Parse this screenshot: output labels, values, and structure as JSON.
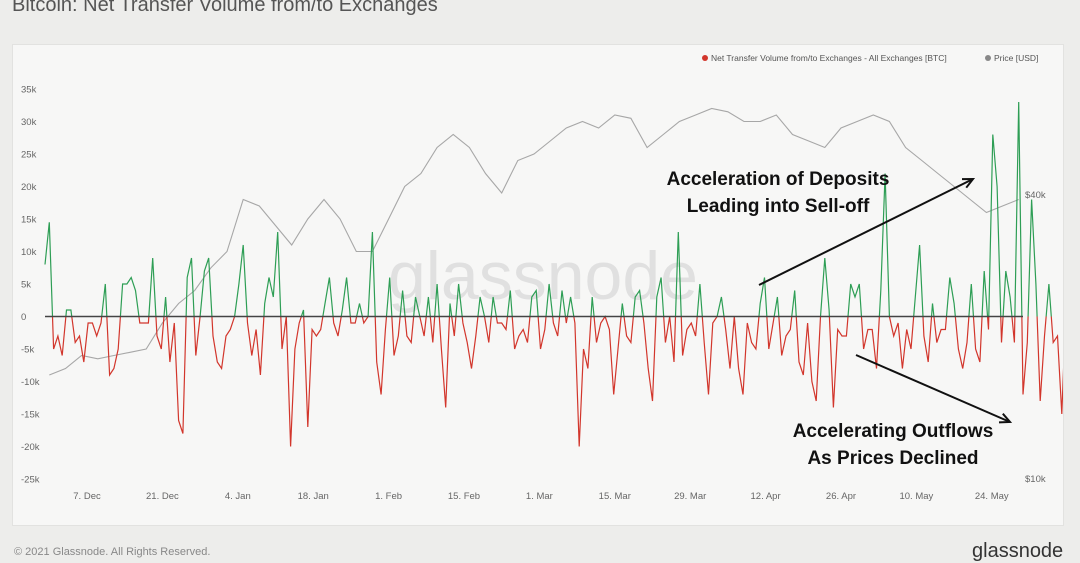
{
  "page": {
    "title": "Bitcoin: Net Transfer Volume from/to Exchanges",
    "copyright": "© 2021 Glassnode. All Rights Reserved.",
    "logo_text": "glassnode"
  },
  "chart_data": {
    "type": "line",
    "watermark": "glassnode",
    "colors": {
      "positive": "#2e9e55",
      "negative": "#d2362c",
      "price": "#a7a7a7",
      "zero_line": "#444444"
    },
    "legend": {
      "placement": "top-right",
      "items": [
        {
          "name": "Net Transfer Volume from/to Exchanges - All Exchanges [BTC]",
          "color": "#d2362c"
        },
        {
          "name": "Price [USD]",
          "color": "#888888"
        }
      ]
    },
    "y_left": {
      "ticks": [
        35000,
        30000,
        25000,
        20000,
        15000,
        10000,
        5000,
        0,
        -5000,
        -10000,
        -15000,
        -20000,
        -25000
      ],
      "tick_labels": [
        "35k",
        "30k",
        "25k",
        "20k",
        "15k",
        "10k",
        "5k",
        "0",
        "-5k",
        "-10k",
        "-15k",
        "-20k",
        "-25k"
      ],
      "range": [
        -25000,
        35000
      ]
    },
    "y_right": {
      "tick_labels": [
        "$40k",
        "$10k"
      ],
      "ticks": [
        40000,
        10000
      ]
    },
    "x": {
      "tick_labels": [
        "7. Dec",
        "21. Dec",
        "4. Jan",
        "18. Jan",
        "1. Feb",
        "15. Feb",
        "1. Mar",
        "15. Mar",
        "29. Mar",
        "12. Apr",
        "26. Apr",
        "10. May",
        "24. May"
      ],
      "tick_positions": [
        7,
        21,
        35,
        49,
        63,
        77,
        91,
        105,
        119,
        133,
        147,
        161,
        175
      ]
    },
    "series": [
      {
        "name": "Net Transfer Volume from/to Exchanges - All Exchanges [BTC]",
        "x_start": -0.8,
        "x_step": 0.8,
        "values": [
          8000,
          14500,
          -5000,
          -3000,
          -6000,
          1000,
          1000,
          -4000,
          -3000,
          -7000,
          -1000,
          -1000,
          -3000,
          -1000,
          5000,
          -9000,
          -8000,
          -5000,
          5000,
          5000,
          6000,
          4000,
          -1000,
          -1000,
          -1000,
          9000,
          -3000,
          -5000,
          3000,
          -7000,
          -1000,
          -16000,
          -18000,
          6000,
          9000,
          -6000,
          0,
          7000,
          9000,
          -3000,
          -7000,
          -8000,
          -3000,
          -2000,
          0,
          5000,
          11000,
          -1000,
          -6000,
          -2000,
          -9000,
          2000,
          6000,
          3000,
          13000,
          -5000,
          0,
          -20000,
          -5000,
          -1000,
          1000,
          -17000,
          -2000,
          -3000,
          -2000,
          2000,
          6000,
          -1000,
          -3000,
          1000,
          6000,
          -1000,
          -1000,
          2000,
          -1000,
          0,
          13000,
          -7000,
          -12000,
          -2000,
          6000,
          -6000,
          -3000,
          4000,
          -3000,
          -4000,
          3000,
          0,
          -3000,
          3000,
          -4000,
          5000,
          -5000,
          -14000,
          2000,
          -3000,
          5000,
          -1000,
          -4000,
          -8000,
          -3000,
          3000,
          0,
          -4000,
          3000,
          -1000,
          -1000,
          -2000,
          4000,
          -5000,
          -3000,
          -2000,
          -4000,
          3000,
          4000,
          -5000,
          -2000,
          5000,
          -1000,
          -3000,
          4000,
          -1000,
          3000,
          -1000,
          -20000,
          -5000,
          -8000,
          3000,
          -4000,
          -1000,
          0,
          -2000,
          -12000,
          -5000,
          2000,
          -3000,
          -4000,
          3000,
          4000,
          -1000,
          -8000,
          -13000,
          3000,
          6000,
          -4000,
          0,
          -7000,
          13000,
          -6000,
          -2000,
          -1000,
          -3000,
          5000,
          -4000,
          -12000,
          -1000,
          0,
          3000,
          -2000,
          -8000,
          0,
          -8000,
          -12000,
          -1000,
          -4000,
          -5000,
          2000,
          6000,
          -5000,
          -1000,
          3000,
          -6000,
          -3000,
          -2000,
          4000,
          -7000,
          -9000,
          -1000,
          -10000,
          -13000,
          0,
          9000,
          1000,
          -14000,
          -2000,
          -3000,
          -3000,
          5000,
          3000,
          5000,
          -5000,
          -2000,
          -2000,
          -8000,
          4000,
          22000,
          0,
          -3000,
          -1000,
          -8000,
          -2000,
          -5000,
          3000,
          11000,
          -3000,
          -7000,
          2000,
          -4000,
          -2000,
          -2000,
          6000,
          2000,
          -5000,
          -8000,
          -4000,
          5000,
          -5000,
          -7000,
          7000,
          -2000,
          28000,
          20000,
          -4000,
          7000,
          3000,
          -4000,
          33000,
          -12000,
          -4000,
          18000,
          5000,
          -13000,
          -3000,
          5000,
          -4000,
          -3000,
          -15000,
          2000
        ]
      },
      {
        "name": "Price [USD]",
        "x": [
          0,
          3,
          6,
          9,
          12,
          15,
          18,
          21,
          24,
          27,
          30,
          33,
          36,
          39,
          42,
          45,
          48,
          51,
          54,
          57,
          60,
          63,
          66,
          69,
          72,
          75,
          78,
          81,
          84,
          87,
          90,
          93,
          96,
          99,
          102,
          105,
          108,
          111,
          114,
          117,
          120,
          123,
          126,
          129,
          132,
          135,
          138,
          141,
          144,
          147,
          150,
          153,
          156,
          159,
          162,
          165,
          168,
          171,
          174,
          177,
          180
        ],
        "values": [
          -9000,
          -8000,
          -6000,
          -6500,
          -6000,
          -5500,
          -5000,
          -1000,
          2000,
          4000,
          7500,
          10000,
          18000,
          17000,
          14000,
          11000,
          15000,
          18000,
          15000,
          10000,
          10000,
          15000,
          20000,
          22000,
          26000,
          28000,
          26000,
          22000,
          19000,
          24000,
          25000,
          27000,
          29000,
          30000,
          29000,
          31000,
          30500,
          26000,
          28000,
          30000,
          31000,
          32000,
          31500,
          30000,
          30000,
          31000,
          28000,
          27000,
          26000,
          29000,
          30000,
          31000,
          30000,
          26000,
          24000,
          22000,
          20000,
          18000,
          16000,
          17000,
          18000
        ]
      }
    ],
    "annotations": [
      {
        "text_lines": [
          "Acceleration of Deposits",
          "Leading into Sell-off"
        ]
      },
      {
        "text_lines": [
          "Accelerating Outflows",
          "As Prices Declined"
        ]
      }
    ]
  }
}
